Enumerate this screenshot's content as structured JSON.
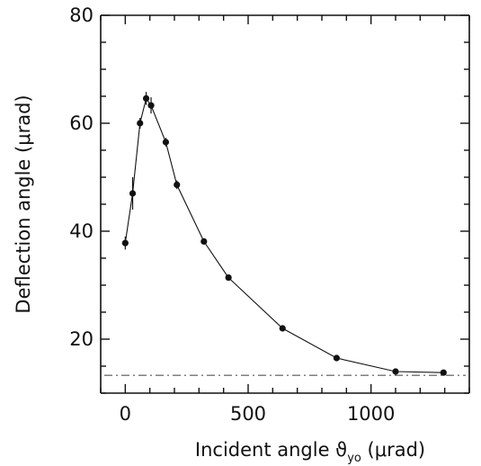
{
  "chart_data": {
    "type": "scatter",
    "title": "",
    "xlabel": "Incident angle ϑ",
    "xlabel_subscript": "yo",
    "xlabel_unit": " (μrad)",
    "ylabel": "Deflection angle (μrad)",
    "xlim": [
      -100,
      1400
    ],
    "ylim": [
      10,
      80
    ],
    "x_ticks": [
      0,
      500,
      1000
    ],
    "y_ticks": [
      20,
      40,
      60,
      80
    ],
    "x_minor_ticks": [
      -100,
      100,
      200,
      300,
      400,
      600,
      700,
      800,
      900,
      1100,
      1200,
      1300,
      1400
    ],
    "y_minor_ticks": [
      10,
      15,
      25,
      30,
      35,
      45,
      50,
      55,
      65,
      70,
      75
    ],
    "grid": false,
    "series": [
      {
        "x": [
          0,
          30,
          60,
          85,
          105,
          165,
          210,
          320,
          420,
          640,
          860,
          1100,
          1295
        ],
        "y": [
          37.8,
          47.0,
          60.0,
          64.6,
          63.3,
          56.5,
          48.6,
          38.1,
          31.4,
          22.0,
          16.5,
          14.0,
          13.8
        ],
        "y_err": [
          1.2,
          3.0,
          1.0,
          1.2,
          1.5,
          0.8,
          0.8,
          0.5,
          0.5,
          0.4,
          0.4,
          0.3,
          0.3
        ]
      }
    ],
    "reference_line": {
      "y": 13.3,
      "style": "dash-dot"
    }
  }
}
